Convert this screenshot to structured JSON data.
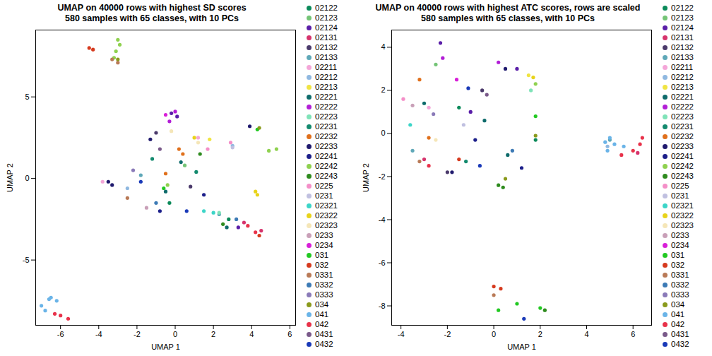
{
  "chart_data": [
    {
      "type": "scatter",
      "title": "UMAP on 40000 rows with highest SD scores",
      "subtitle": "580 samples with 65 classes, with 10 PCs",
      "xlabel": "UMAP 1",
      "ylabel": "UMAP 2",
      "xlim": [
        -7.3,
        6.3
      ],
      "ylim": [
        -9,
        9.1
      ],
      "xticks": [
        -6,
        -4,
        -2,
        0,
        2,
        4,
        6
      ],
      "yticks": [
        -5,
        0,
        5
      ],
      "legend": "right",
      "marker": "circle",
      "series": [
        {
          "name": "02122",
          "color": "#0b8a5a",
          "values": [
            [
              -0.3,
              -1.5
            ],
            [
              2.8,
              -2.5
            ]
          ]
        },
        {
          "name": "02123",
          "color": "#74c476",
          "values": [
            [
              0.5,
              0.8
            ]
          ]
        },
        {
          "name": "02124",
          "color": "#5a1ea8",
          "values": [
            [
              -0.2,
              4
            ],
            [
              0.1,
              3.8
            ],
            [
              3.3,
              -3
            ]
          ]
        },
        {
          "name": "02131",
          "color": "#d6336c",
          "values": [
            [
              4.5,
              -3.2
            ],
            [
              3.6,
              -2.7
            ]
          ]
        },
        {
          "name": "02132",
          "color": "#4b3a6b",
          "values": [
            [
              -1,
              2.8
            ],
            [
              0.8,
              -0.5
            ]
          ]
        },
        {
          "name": "02133",
          "color": "#5fa8b8",
          "values": [
            [
              -1.8,
              0.2
            ],
            [
              2.3,
              -2.2
            ]
          ]
        },
        {
          "name": "02211",
          "color": "#f4a6d8",
          "values": [
            [
              -3.8,
              -0.2
            ],
            [
              1.2,
              2.5
            ]
          ]
        },
        {
          "name": "02212",
          "color": "#8fb8e0",
          "values": [
            [
              -2.5,
              -0.6
            ],
            [
              3,
              2
            ]
          ]
        },
        {
          "name": "02213",
          "color": "#f0e442",
          "values": [
            [
              1.8,
              2.4
            ]
          ]
        },
        {
          "name": "02221",
          "color": "#0e6b6b",
          "values": [
            [
              2.7,
              -3
            ],
            [
              -0.5,
              -0.8
            ],
            [
              0.3,
              1
            ]
          ]
        },
        {
          "name": "02222",
          "color": "#b21ed6",
          "values": [
            [
              0,
              4.1
            ],
            [
              -0.3,
              3.5
            ]
          ]
        },
        {
          "name": "02223",
          "color": "#7fe3b8",
          "values": [
            [
              2.3,
              -2.1
            ]
          ]
        },
        {
          "name": "02231",
          "color": "#138a6e",
          "values": [
            [
              -1.2,
              1.2
            ],
            [
              1.1,
              0.4
            ]
          ]
        },
        {
          "name": "02232",
          "color": "#e0701c",
          "values": [
            [
              0.2,
              1.8
            ],
            [
              0.4,
              1.5
            ],
            [
              -0.5,
              0.3
            ]
          ]
        },
        {
          "name": "02233",
          "color": "#201a6e",
          "values": [
            [
              -3.5,
              -0.2
            ],
            [
              -3.3,
              -0.4
            ],
            [
              -1.3,
              2.4
            ],
            [
              3.9,
              3.2
            ]
          ]
        },
        {
          "name": "02241",
          "color": "#1c1f8a",
          "values": [
            [
              1.5,
              -1
            ],
            [
              -0.8,
              -2
            ]
          ]
        },
        {
          "name": "02242",
          "color": "#8fd14f",
          "values": [
            [
              5.3,
              1.8
            ],
            [
              4.9,
              1.7
            ],
            [
              -0.4,
              -0.4
            ],
            [
              -3,
              8.5
            ],
            [
              -2.9,
              8.2
            ],
            [
              -3.1,
              7.8
            ],
            [
              -3.2,
              7.4
            ]
          ]
        },
        {
          "name": "02243",
          "color": "#2e8b1e",
          "values": [
            [
              2.5,
              -2.8
            ],
            [
              1.3,
              1.5
            ]
          ]
        },
        {
          "name": "0225",
          "color": "#f48fc8",
          "values": [
            [
              2.9,
              2.2
            ],
            [
              1.7,
              1.8
            ]
          ]
        },
        {
          "name": "0231",
          "color": "#c0c0e0",
          "values": [
            [
              3,
              1.9
            ]
          ]
        },
        {
          "name": "02321",
          "color": "#3cd5c8",
          "values": [
            [
              2,
              -2.1
            ],
            [
              1.5,
              -2
            ]
          ]
        },
        {
          "name": "02322",
          "color": "#e8d31a",
          "values": [
            [
              4.2,
              -0.8
            ],
            [
              4.3,
              -1
            ],
            [
              1,
              2.5
            ]
          ]
        },
        {
          "name": "02323",
          "color": "#f5e6b8",
          "values": [
            [
              1.2,
              2.2
            ],
            [
              -0.2,
              2.9
            ]
          ]
        },
        {
          "name": "0233",
          "color": "#c9a0b8",
          "values": [
            [
              -1.5,
              -1.8
            ]
          ]
        },
        {
          "name": "0234",
          "color": "#d81fd8",
          "values": [
            [
              -0.5,
              3.9
            ]
          ]
        },
        {
          "name": "031",
          "color": "#22c922",
          "values": [
            [
              4.3,
              3
            ],
            [
              -0.6,
              -0.6
            ]
          ]
        },
        {
          "name": "032",
          "color": "#d63a1e",
          "values": [
            [
              -4.5,
              8
            ],
            [
              -4.3,
              7.9
            ],
            [
              4.4,
              -3.5
            ]
          ]
        },
        {
          "name": "0331",
          "color": "#b97a57",
          "values": [
            [
              -3.3,
              7.3
            ],
            [
              -3,
              7.1
            ],
            [
              -2.5,
              -1.2
            ]
          ]
        },
        {
          "name": "0332",
          "color": "#3c7ab5",
          "values": [
            [
              3.2,
              -2.5
            ],
            [
              -1,
              -1.5
            ]
          ]
        },
        {
          "name": "0333",
          "color": "#8a7ab8",
          "values": [
            [
              -2.2,
              0.5
            ]
          ]
        },
        {
          "name": "034",
          "color": "#8a9a1c",
          "values": [
            [
              4.4,
              3.1
            ],
            [
              -3,
              7.3
            ]
          ]
        },
        {
          "name": "041",
          "color": "#6ab4e8",
          "values": [
            [
              -7,
              -7.8
            ],
            [
              -6.6,
              -7.4
            ],
            [
              -6.2,
              -7.5
            ],
            [
              -6.8,
              -8.1
            ],
            [
              -6.5,
              -7.3
            ]
          ]
        },
        {
          "name": "042",
          "color": "#e8324a",
          "values": [
            [
              -6,
              -8.4
            ],
            [
              -5.6,
              -8.6
            ],
            [
              -6.3,
              -8.3
            ],
            [
              4.2,
              -3.3
            ],
            [
              3.8,
              -2.9
            ]
          ]
        },
        {
          "name": "0431",
          "color": "#7a5a8a",
          "values": [
            [
              -0.8,
              1.8
            ]
          ]
        },
        {
          "name": "0432",
          "color": "#1a3ab8",
          "values": [
            [
              0.6,
              -2
            ],
            [
              -1.8,
              -0.2
            ]
          ]
        }
      ]
    },
    {
      "type": "scatter",
      "title": "UMAP on 40000 rows with highest ATC scores, rows are scaled",
      "subtitle": "580 samples with 65 classes, with 10 PCs",
      "xlabel": "UMAP 1",
      "ylabel": "UMAP 2",
      "xlim": [
        -4.4,
        6.8
      ],
      "ylim": [
        -8.9,
        4.8
      ],
      "xticks": [
        -4,
        -2,
        0,
        2,
        4,
        6
      ],
      "yticks": [
        -8,
        -6,
        -4,
        -2,
        0,
        2,
        4
      ],
      "legend": "right",
      "marker": "circle",
      "series": [
        {
          "name": "02122",
          "color": "#0b8a5a",
          "values": [
            [
              -1.5,
              1.2
            ],
            [
              1.8,
              -0.3
            ]
          ]
        },
        {
          "name": "02123",
          "color": "#74c476",
          "values": [
            [
              -2.5,
              3.2
            ]
          ]
        },
        {
          "name": "02124",
          "color": "#5a1ea8",
          "values": [
            [
              -2.3,
              4.2
            ],
            [
              -1,
              1
            ],
            [
              1,
              3
            ]
          ]
        },
        {
          "name": "02131",
          "color": "#d6336c",
          "values": [
            [
              -3,
              -1.2
            ],
            [
              6.2,
              -0.9
            ]
          ]
        },
        {
          "name": "02132",
          "color": "#4b3a6b",
          "values": [
            [
              -0.5,
              2
            ],
            [
              -2,
              -1.8
            ]
          ]
        },
        {
          "name": "02133",
          "color": "#5fa8b8",
          "values": [
            [
              -3.5,
              -0.8
            ],
            [
              5,
              -0.3
            ]
          ]
        },
        {
          "name": "02211",
          "color": "#f4a6d8",
          "values": [
            [
              -2.8,
              1.2
            ]
          ]
        },
        {
          "name": "02212",
          "color": "#8fb8e0",
          "values": [
            [
              4.9,
              -0.6
            ]
          ]
        },
        {
          "name": "02213",
          "color": "#f0e442",
          "values": [
            [
              1.5,
              2.7
            ]
          ]
        },
        {
          "name": "02221",
          "color": "#0e6b6b",
          "values": [
            [
              -3,
              1.4
            ],
            [
              0.6,
              -1
            ],
            [
              -0.4,
              0.6
            ]
          ]
        },
        {
          "name": "02222",
          "color": "#b21ed6",
          "values": [
            [
              -2.2,
              3.5
            ],
            [
              0.2,
              3.3
            ]
          ]
        },
        {
          "name": "02223",
          "color": "#7fe3b8",
          "values": [
            [
              1.6,
              2
            ]
          ]
        },
        {
          "name": "02231",
          "color": "#138a6e",
          "values": [
            [
              -1.2,
              -1.3
            ]
          ]
        },
        {
          "name": "02232",
          "color": "#e0701c",
          "values": [
            [
              -2.8,
              -0.2
            ],
            [
              -3.2,
              2.5
            ]
          ]
        },
        {
          "name": "02233",
          "color": "#201a6e",
          "values": [
            [
              -1.8,
              -1.8
            ],
            [
              0.5,
              3
            ]
          ]
        },
        {
          "name": "02241",
          "color": "#1c1f8a",
          "values": [
            [
              -0.8,
              -0.3
            ],
            [
              1.2,
              -1.6
            ]
          ]
        },
        {
          "name": "02242",
          "color": "#8fd14f",
          "values": [
            [
              1.8,
              2.3
            ]
          ]
        },
        {
          "name": "02243",
          "color": "#2e8b1e",
          "values": [
            [
              0.2,
              -2.4
            ],
            [
              0.4,
              -2.5
            ],
            [
              2.2,
              -8.2
            ]
          ]
        },
        {
          "name": "0225",
          "color": "#f48fc8",
          "values": [
            [
              -3.9,
              1.6
            ]
          ]
        },
        {
          "name": "0231",
          "color": "#c0c0e0",
          "values": [
            [
              -1.3,
              0.4
            ]
          ]
        },
        {
          "name": "02321",
          "color": "#3cd5c8",
          "values": [
            [
              -3.6,
              0.4
            ]
          ]
        },
        {
          "name": "02322",
          "color": "#e8d31a",
          "values": [
            [
              1.7,
              2.6
            ]
          ]
        },
        {
          "name": "02323",
          "color": "#f5e6b8",
          "values": [
            [
              -2.5,
              -0.3
            ]
          ]
        },
        {
          "name": "0233",
          "color": "#c9a0b8",
          "values": [
            [
              -3.5,
              1.3
            ]
          ]
        },
        {
          "name": "0234",
          "color": "#d81fd8",
          "values": [
            [
              -1.6,
              2.5
            ]
          ]
        },
        {
          "name": "031",
          "color": "#22c922",
          "values": [
            [
              1,
              -7.9
            ],
            [
              0.2,
              -8.2
            ],
            [
              2,
              -8.1
            ],
            [
              1.8,
              0.8
            ]
          ]
        },
        {
          "name": "032",
          "color": "#d63a1e",
          "values": [
            [
              0,
              -7.1
            ],
            [
              0.3,
              -7.2
            ],
            [
              -1.5,
              -1.2
            ]
          ]
        },
        {
          "name": "0331",
          "color": "#b97a57",
          "values": [
            [
              0,
              -7.5
            ],
            [
              -3.2,
              -1.3
            ]
          ]
        },
        {
          "name": "0332",
          "color": "#3c7ab5",
          "values": [
            [
              0.8,
              -0.8
            ]
          ]
        },
        {
          "name": "0333",
          "color": "#8a7ab8",
          "values": [
            [
              -2.6,
              0.9
            ]
          ]
        },
        {
          "name": "034",
          "color": "#8a9a1c",
          "values": [
            [
              0.5,
              -2.1
            ],
            [
              1.8,
              -0.1
            ]
          ]
        },
        {
          "name": "041",
          "color": "#6ab4e8",
          "values": [
            [
              4.8,
              -0.4
            ],
            [
              5.2,
              -0.5
            ],
            [
              5.6,
              -0.6
            ],
            [
              5,
              -0.2
            ],
            [
              4.9,
              -0.8
            ]
          ]
        },
        {
          "name": "042",
          "color": "#e8324a",
          "values": [
            [
              6,
              -0.8
            ],
            [
              6.3,
              -0.5
            ],
            [
              5.5,
              -1
            ],
            [
              6.4,
              -0.2
            ],
            [
              -2.8,
              -1.5
            ]
          ]
        },
        {
          "name": "0431",
          "color": "#7a5a8a",
          "values": [
            [
              -0.3,
              1.8
            ]
          ]
        },
        {
          "name": "0432",
          "color": "#1a3ab8",
          "values": [
            [
              1.3,
              -8.6
            ],
            [
              -1.1,
              2.1
            ],
            [
              -0.6,
              -1.5
            ]
          ]
        }
      ]
    }
  ]
}
